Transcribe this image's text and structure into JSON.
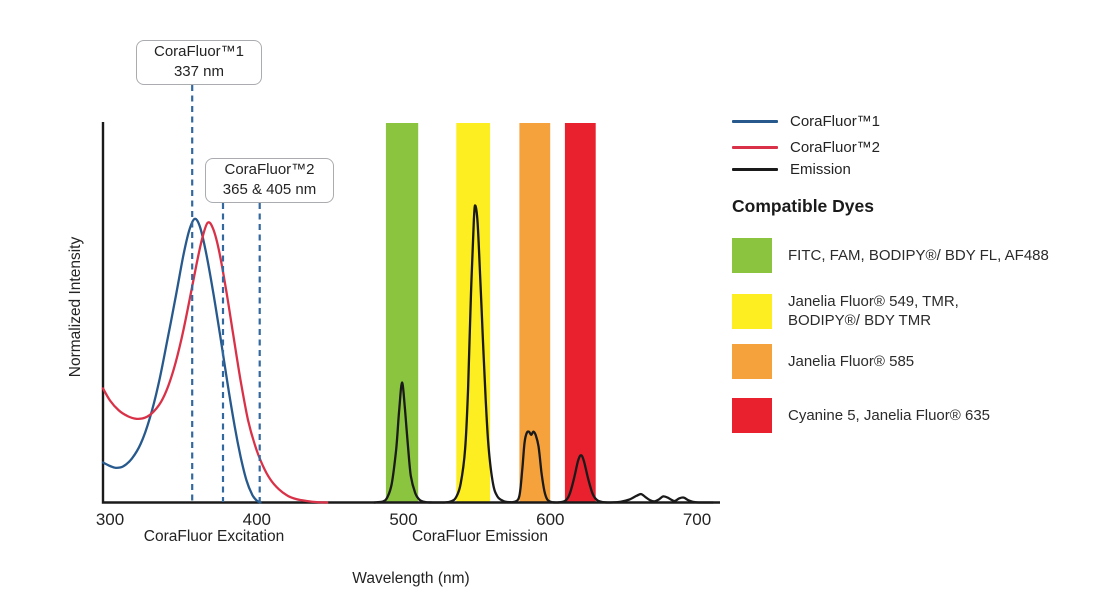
{
  "chart_data": {
    "type": "line",
    "title": "",
    "xlabel": "Wavelength (nm)",
    "ylabel": "Normalized Intensity",
    "xlim": [
      295,
      716
    ],
    "ylim": [
      0,
      1
    ],
    "grid": false,
    "x_ticks": [
      {
        "nm": 300,
        "label": "300"
      },
      {
        "nm": 400,
        "label": "400"
      },
      {
        "nm": 500,
        "label": "500"
      },
      {
        "nm": 600,
        "label": "600"
      },
      {
        "nm": 700,
        "label": "700"
      }
    ],
    "x_group_labels": [
      "CoraFluor Excitation",
      "CoraFluor Emission"
    ],
    "excitation_peaks": [
      {
        "series": "CoraFluor™1",
        "labeled_nm": "337 nm",
        "peak_intensity": 0.75
      },
      {
        "series": "CoraFluor™2",
        "labeled_nm": "365 & 405 nm",
        "peak_intensity": 0.74
      }
    ],
    "emission_peaks": [
      {
        "nm": 499,
        "intensity": 0.32
      },
      {
        "nm": 549,
        "intensity": 0.78
      },
      {
        "nm": 586,
        "intensity": 0.19
      },
      {
        "nm": 621,
        "intensity": 0.12
      }
    ],
    "callouts": [
      {
        "id": "callout1",
        "line1": "CoraFluor™1",
        "line2": "337 nm"
      },
      {
        "id": "callout2",
        "line1": "CoraFluor™2",
        "line2": "365 & 405 nm"
      }
    ],
    "dashed_markers": [
      {
        "label_nm": 337,
        "draw_nm": 356,
        "from_callout": "callout1"
      },
      {
        "label_nm": 365,
        "draw_nm": 377,
        "from_callout": "callout2"
      },
      {
        "label_nm": 405,
        "draw_nm": 402,
        "from_callout": "callout2"
      }
    ],
    "bands": [
      {
        "name": "green",
        "color": "#8bc53f",
        "from_nm": 488,
        "to_nm": 510
      },
      {
        "name": "yellow",
        "color": "#fcee21",
        "from_nm": 536,
        "to_nm": 559
      },
      {
        "name": "orange",
        "color": "#f6a23c",
        "from_nm": 579,
        "to_nm": 600
      },
      {
        "name": "red",
        "color": "#e9202e",
        "from_nm": 610,
        "to_nm": 631
      }
    ],
    "series": [
      {
        "name": "CoraFluor™1",
        "color": "#27598d",
        "points": [
          [
            295.2,
            0.105
          ],
          [
            300,
            0.096
          ],
          [
            304,
            0.091
          ],
          [
            309,
            0.095
          ],
          [
            315,
            0.116
          ],
          [
            321,
            0.155
          ],
          [
            327,
            0.22
          ],
          [
            333,
            0.31
          ],
          [
            339,
            0.425
          ],
          [
            345,
            0.545
          ],
          [
            350,
            0.65
          ],
          [
            354,
            0.715
          ],
          [
            357.5,
            0.745
          ],
          [
            361,
            0.728
          ],
          [
            365,
            0.665
          ],
          [
            370,
            0.56
          ],
          [
            375,
            0.44
          ],
          [
            380,
            0.315
          ],
          [
            385,
            0.2
          ],
          [
            389,
            0.12
          ],
          [
            393,
            0.058
          ],
          [
            397,
            0.02
          ],
          [
            400,
            0.005
          ],
          [
            402.5,
            0
          ]
        ]
      },
      {
        "name": "CoraFluor™2",
        "color": "#d93248",
        "points": [
          [
            295.2,
            0.3
          ],
          [
            300,
            0.268
          ],
          [
            306,
            0.242
          ],
          [
            312,
            0.227
          ],
          [
            318,
            0.22
          ],
          [
            324,
            0.223
          ],
          [
            330,
            0.24
          ],
          [
            336,
            0.273
          ],
          [
            342,
            0.332
          ],
          [
            348,
            0.418
          ],
          [
            354,
            0.528
          ],
          [
            359,
            0.627
          ],
          [
            363,
            0.697
          ],
          [
            366.5,
            0.735
          ],
          [
            370,
            0.722
          ],
          [
            374,
            0.667
          ],
          [
            379,
            0.562
          ],
          [
            384,
            0.44
          ],
          [
            389,
            0.32
          ],
          [
            394,
            0.218
          ],
          [
            399,
            0.148
          ],
          [
            404,
            0.098
          ],
          [
            409,
            0.062
          ],
          [
            415,
            0.035
          ],
          [
            421,
            0.018
          ],
          [
            427,
            0.009
          ],
          [
            434,
            0.004
          ],
          [
            441,
            0.001
          ],
          [
            448,
            0
          ]
        ]
      },
      {
        "name": "Emission",
        "color": "#1a1a1a",
        "points": [
          [
            480,
            0
          ],
          [
            486,
            0.003
          ],
          [
            489,
            0.014
          ],
          [
            492,
            0.05
          ],
          [
            495,
            0.14
          ],
          [
            497,
            0.24
          ],
          [
            499,
            0.315
          ],
          [
            501,
            0.245
          ],
          [
            503,
            0.15
          ],
          [
            505,
            0.07
          ],
          [
            508,
            0.025
          ],
          [
            511,
            0.007
          ],
          [
            515,
            0.001
          ],
          [
            520,
            0
          ],
          [
            528,
            0
          ],
          [
            533,
            0.004
          ],
          [
            536,
            0.015
          ],
          [
            539,
            0.05
          ],
          [
            542,
            0.14
          ],
          [
            544,
            0.3
          ],
          [
            546,
            0.55
          ],
          [
            548,
            0.745
          ],
          [
            549,
            0.78
          ],
          [
            550.5,
            0.735
          ],
          [
            552,
            0.615
          ],
          [
            554,
            0.44
          ],
          [
            556,
            0.27
          ],
          [
            558,
            0.145
          ],
          [
            561,
            0.05
          ],
          [
            564,
            0.016
          ],
          [
            568,
            0.004
          ],
          [
            572,
            0.001
          ],
          [
            576,
            0.002
          ],
          [
            579,
            0.018
          ],
          [
            581,
            0.09
          ],
          [
            582.5,
            0.158
          ],
          [
            584,
            0.183
          ],
          [
            585.5,
            0.186
          ],
          [
            587,
            0.178
          ],
          [
            588.5,
            0.186
          ],
          [
            590,
            0.178
          ],
          [
            592,
            0.148
          ],
          [
            594,
            0.08
          ],
          [
            596,
            0.03
          ],
          [
            598,
            0.008
          ],
          [
            601,
            0.001
          ],
          [
            605,
            0
          ],
          [
            610,
            0.004
          ],
          [
            613,
            0.02
          ],
          [
            616,
            0.06
          ],
          [
            619,
            0.11
          ],
          [
            621,
            0.124
          ],
          [
            623,
            0.108
          ],
          [
            626,
            0.06
          ],
          [
            629,
            0.022
          ],
          [
            632,
            0.006
          ],
          [
            636,
            0.001
          ],
          [
            641,
            0
          ],
          [
            648,
            0.002
          ],
          [
            654,
            0.008
          ],
          [
            659,
            0.018
          ],
          [
            662,
            0.022
          ],
          [
            665,
            0.014
          ],
          [
            668,
            0.006
          ],
          [
            671,
            0.003
          ],
          [
            674,
            0.008
          ],
          [
            677,
            0.016
          ],
          [
            680,
            0.013
          ],
          [
            683,
            0.006
          ],
          [
            685,
            0.004
          ],
          [
            688,
            0.011
          ],
          [
            691,
            0.013
          ],
          [
            694,
            0.006
          ],
          [
            697,
            0.002
          ],
          [
            701,
            0
          ],
          [
            711,
            0
          ]
        ]
      }
    ],
    "colors": {
      "dashed_marker": "#33689e",
      "axis": "#1a1a1a"
    }
  },
  "legend": {
    "items": [
      {
        "label": "CoraFluor™1",
        "color": "#27598d"
      },
      {
        "label": "CoraFluor™2",
        "color": "#d93248"
      },
      {
        "label": "Emission",
        "color": "#1a1a1a"
      }
    ],
    "dyes_heading": "Compatible Dyes",
    "dyes": [
      {
        "color": "#8bc53f",
        "line1": "FITC, FAM, BODIPY®/ BDY FL, AF488",
        "line2": ""
      },
      {
        "color": "#fcee21",
        "line1": "Janelia Fluor® 549, TMR,",
        "line2": "BODIPY®/ BDY TMR"
      },
      {
        "color": "#f6a23c",
        "line1": "Janelia Fluor® 585",
        "line2": ""
      },
      {
        "color": "#e9202e",
        "line1": "Cyanine 5, Janelia Fluor® 635",
        "line2": ""
      }
    ]
  }
}
